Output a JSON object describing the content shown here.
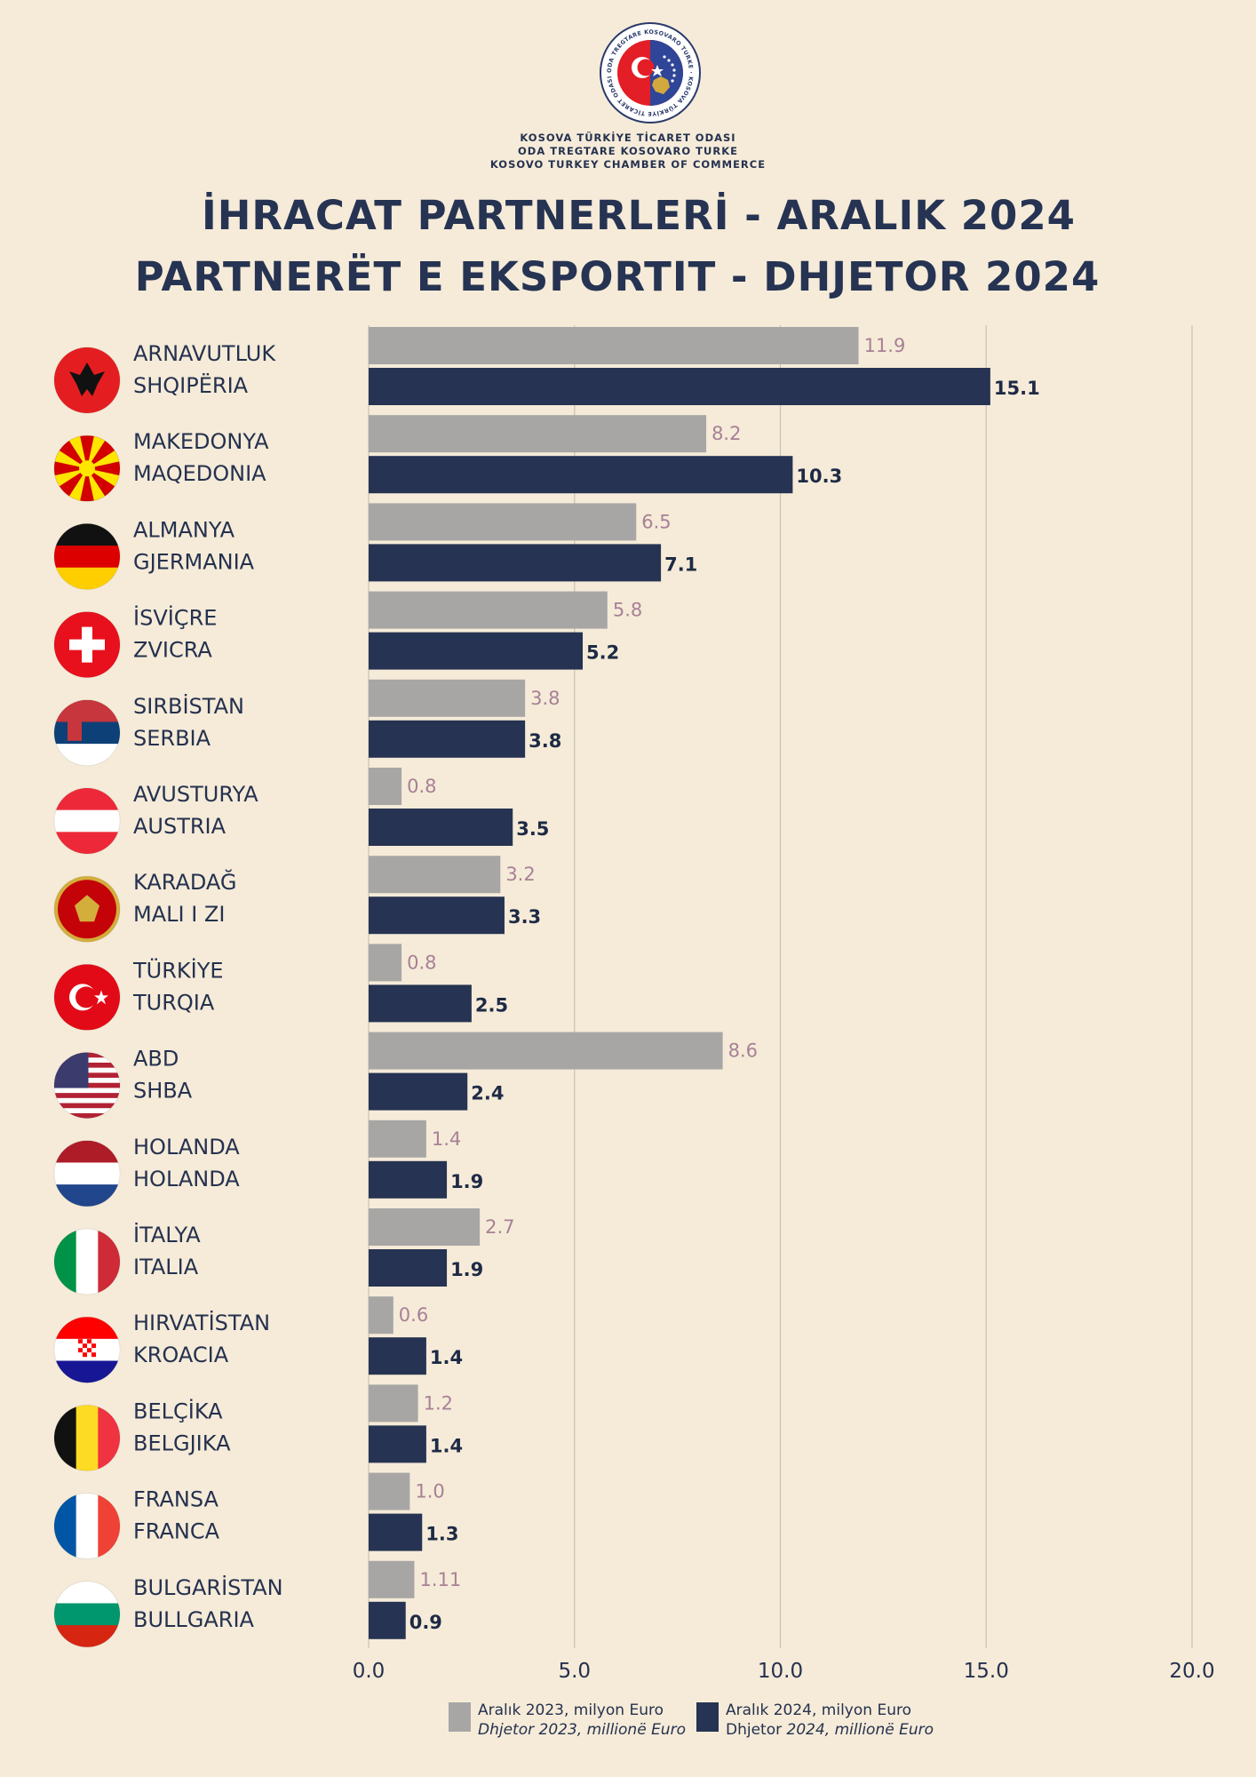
{
  "header": {
    "logo_text": "ODA TREGTARE KOSOVARO TURKE · KOSOVA TÜRKİYE TİCARET ODASI",
    "org_lines": [
      "KOSOVA TÜRKİYE TİCARET ODASI",
      "ODA TREGTARE KOSOVARO TURKE",
      "KOSOVO TURKEY CHAMBER OF COMMERCE"
    ],
    "title_tr": "İHRACAT PARTNERLERİ - ARALIK 2024",
    "title_sq": "PARTNERËT E EKSPORTIT - DHJETOR 2024"
  },
  "colors": {
    "background": "#f5ebd8",
    "bar_2023": "#a8a6a5",
    "bar_2024": "#263352",
    "label_2023": "#a88096",
    "label_2024": "#1e2a45",
    "grid": "#c8c2b8"
  },
  "chart_data": {
    "type": "bar",
    "orientation": "horizontal",
    "categories": [
      {
        "tr": "ARNAVUTLUK",
        "sq": "SHQIPËRIA",
        "flag": "albania-flag"
      },
      {
        "tr": "MAKEDONYA",
        "sq": "MAQEDONIA",
        "flag": "north-macedonia-flag"
      },
      {
        "tr": "ALMANYA",
        "sq": "GJERMANIA",
        "flag": "germany-flag"
      },
      {
        "tr": "İSVİÇRE",
        "sq": "ZVICRA",
        "flag": "switzerland-flag"
      },
      {
        "tr": "SIRBİSTAN",
        "sq": "SERBIA",
        "flag": "serbia-flag"
      },
      {
        "tr": "AVUSTURYA",
        "sq": "AUSTRIA",
        "flag": "austria-flag"
      },
      {
        "tr": "KARADAĞ",
        "sq": "MALI I ZI",
        "flag": "montenegro-flag"
      },
      {
        "tr": "TÜRKİYE",
        "sq": "TURQIA",
        "flag": "turkey-flag"
      },
      {
        "tr": "ABD",
        "sq": "SHBA",
        "flag": "usa-flag"
      },
      {
        "tr": "HOLANDA",
        "sq": "HOLANDA",
        "flag": "netherlands-flag"
      },
      {
        "tr": "İTALYA",
        "sq": "ITALIA",
        "flag": "italy-flag"
      },
      {
        "tr": "HIRVATİSTAN",
        "sq": "KROACIA",
        "flag": "croatia-flag"
      },
      {
        "tr": "BELÇİKA",
        "sq": "BELGJIKA",
        "flag": "belgium-flag"
      },
      {
        "tr": "FRANSA",
        "sq": "FRANCA",
        "flag": "france-flag"
      },
      {
        "tr": "BULGARİSTAN",
        "sq": "BULLGARIA",
        "flag": "bulgaria-flag"
      }
    ],
    "series": [
      {
        "name": "Aralık  2023, milyon Euro / Dhjetor  2023, millionë Euro",
        "values": [
          11.9,
          8.2,
          6.5,
          5.8,
          3.8,
          0.8,
          3.2,
          0.8,
          8.6,
          1.4,
          2.7,
          0.6,
          1.2,
          1.0,
          1.11
        ],
        "labels": [
          "11.9",
          "8.2",
          "6.5",
          "5.8",
          "3.8",
          "0.8",
          "3.2",
          "0.8",
          "8.6",
          "1.4",
          "2.7",
          "0.6",
          "1.2",
          "1.0",
          "1.11"
        ]
      },
      {
        "name": "Aralık 2024, milyon Euro / Dhjetor 2024, millionë Euro",
        "values": [
          15.1,
          10.3,
          7.1,
          5.2,
          3.8,
          3.5,
          3.3,
          2.5,
          2.4,
          1.9,
          1.9,
          1.4,
          1.4,
          1.3,
          0.9
        ],
        "labels": [
          "15.1",
          "10.3",
          "7.1",
          "5.2",
          "3.8",
          "3.5",
          "3.3",
          "2.5",
          "2.4",
          "1.9",
          "1.9",
          "1.4",
          "1.4",
          "1.3",
          "0.9"
        ]
      }
    ],
    "xlim": [
      0,
      20
    ],
    "xticks": [
      "0.0",
      "5.0",
      "10.0",
      "15.0",
      "20.0"
    ],
    "xtick_values": [
      0,
      5,
      10,
      15,
      20
    ],
    "grid": "vertical",
    "legend_position": "bottom"
  },
  "legend": {
    "item_2023_line1": "Aralık  2023, milyon Euro",
    "item_2023_line2": "Dhjetor  2023, millionë Euro",
    "item_2024_line1": "Aralık 2024, milyon Euro",
    "item_2024_line2_prefix": "Dhjetor ",
    "item_2024_line2_italic": "2024, millionë Euro"
  }
}
